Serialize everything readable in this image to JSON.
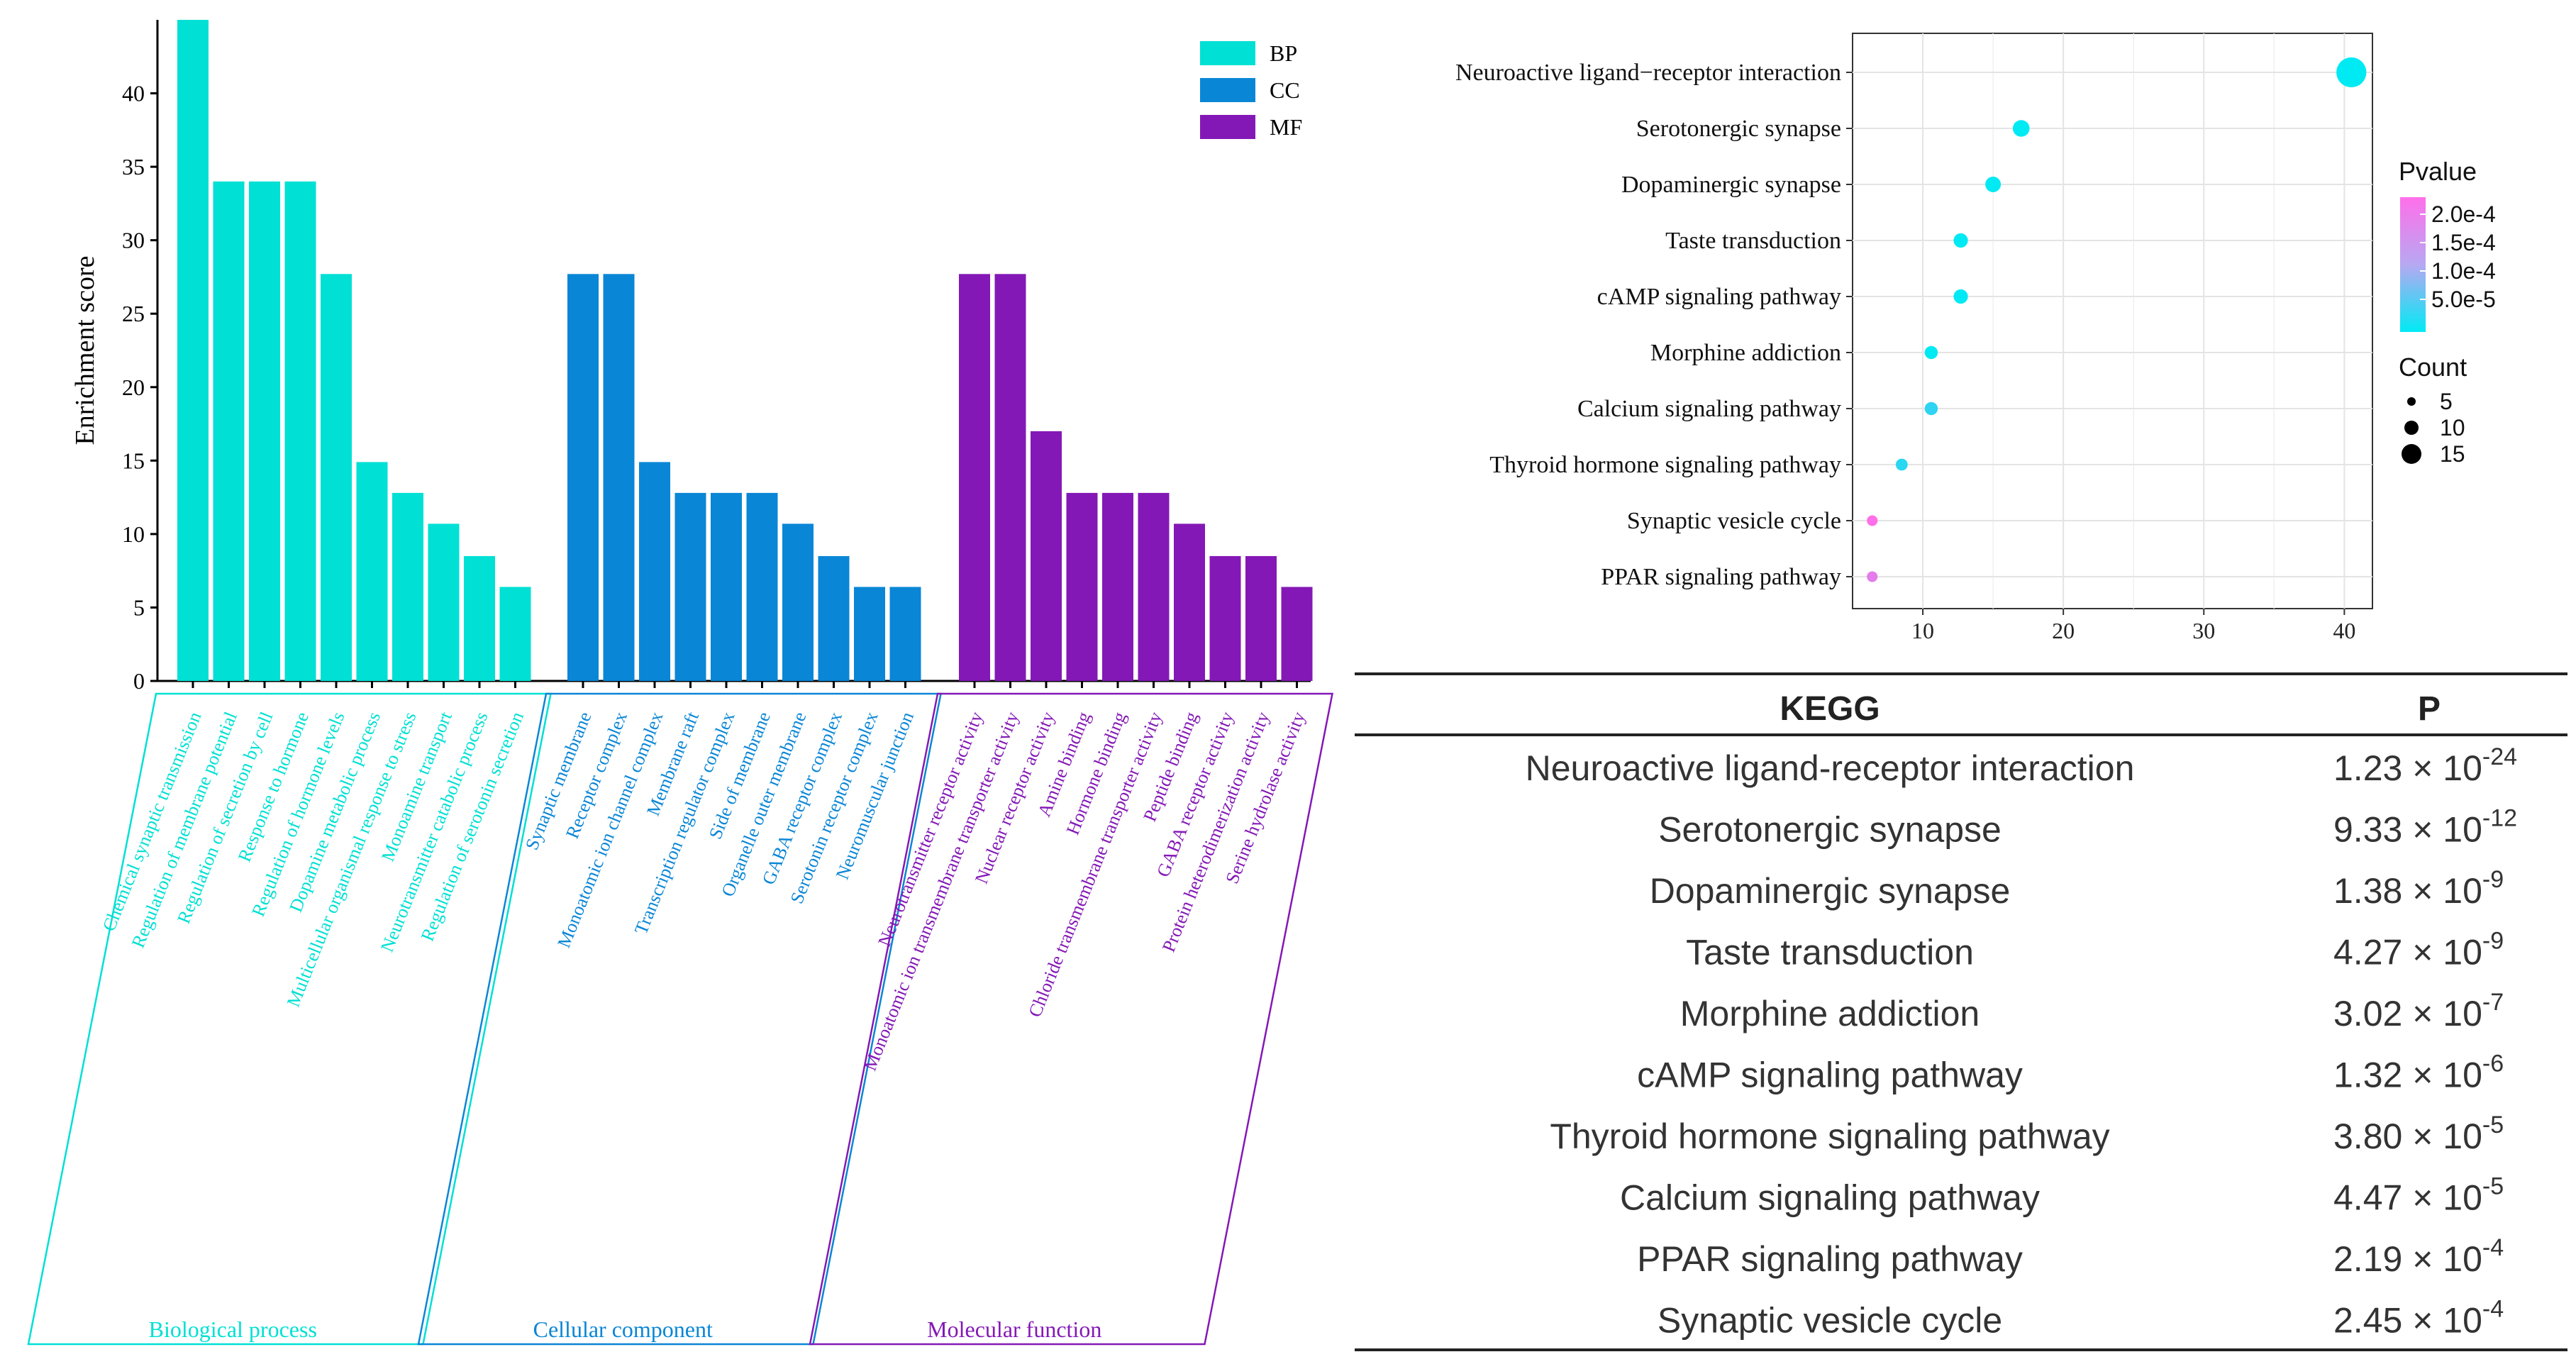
{
  "chart_data": [
    {
      "type": "bar",
      "ylabel": "Enrichment score",
      "ylim": [
        0,
        45
      ],
      "yticks": [
        0,
        5,
        10,
        15,
        20,
        25,
        30,
        35,
        40
      ],
      "legend": [
        {
          "key": "BP",
          "color": "#00E0D4"
        },
        {
          "key": "CC",
          "color": "#0A86D6"
        },
        {
          "key": "MF",
          "color": "#8418B6"
        }
      ],
      "groups": [
        {
          "key": "BP",
          "name": "Biological process",
          "color": "#00E0D4",
          "categories": [
            "Chemical synaptic transmission",
            "Regulation of membrane potential",
            "Regulation of secretion by cell",
            "Response to hormone",
            "Regulation of hormone levels",
            "Dopamine metabolic process",
            "Multicellular organismal response to stress",
            "Monoamine transport",
            "Neurotransmitter catabolic process",
            "Regulation of serotonin secretion"
          ],
          "values": [
            45,
            34,
            34,
            34,
            27.7,
            14.9,
            12.8,
            10.7,
            8.5,
            6.4
          ]
        },
        {
          "key": "CC",
          "name": "Cellular component",
          "color": "#0A86D6",
          "categories": [
            "Synaptic membrane",
            "Receptor complex",
            "Monoatomic ion channel complex",
            "Membrane raft",
            "Transcription regulator complex",
            "Side of membrane",
            "Organelle outer membrane",
            "GABA receptor complex",
            "Serotonin receptor complex",
            "Neuromuscular junction"
          ],
          "values": [
            27.7,
            27.7,
            14.9,
            12.8,
            12.8,
            12.8,
            10.7,
            8.5,
            6.4,
            6.4
          ]
        },
        {
          "key": "MF",
          "name": "Molecular function",
          "color": "#8418B6",
          "categories": [
            "Neurotransmitter receptor activity",
            "Monoatomic ion transmembrane transporter activity",
            "Nuclear receptor activity",
            "Amine binding",
            "Hormone binding",
            "Chloride transmembrane transporter activity",
            "Peptide binding",
            "GABA receptor activity",
            "Protein heterodimerization activity",
            "Serine hydrolase activity"
          ],
          "values": [
            27.7,
            27.7,
            17,
            12.8,
            12.8,
            12.8,
            10.7,
            8.5,
            8.5,
            6.4
          ]
        }
      ]
    },
    {
      "type": "scatter",
      "categories": [
        "Neuroactive ligand−receptor interaction",
        "Serotonergic synapse",
        "Dopaminergic synapse",
        "Taste transduction",
        "cAMP signaling pathway",
        "Morphine addiction",
        "Calcium signaling pathway",
        "Thyroid hormone signaling pathway",
        "Synaptic vesicle cycle",
        "PPAR signaling pathway"
      ],
      "x": [
        40.5,
        17,
        15,
        12.7,
        12.7,
        10.6,
        10.6,
        8.5,
        6.4,
        6.4
      ],
      "count": [
        19,
        8,
        7,
        6,
        6,
        5,
        5,
        4,
        3,
        3
      ],
      "pvalue": [
        1.23e-24,
        9.33e-12,
        1.38e-09,
        4.27e-09,
        1.32e-06,
        3.02e-07,
        4.47e-05,
        3.8e-05,
        0.000245,
        0.000219
      ],
      "xlim": [
        5,
        42
      ],
      "xticks": [
        "10",
        "20",
        "30",
        "40"
      ],
      "xtick_values": [
        10,
        20,
        30,
        40
      ],
      "legend_pvalue_title": "Pvalue",
      "legend_pvalue_labels": [
        "2.0e-4",
        "1.5e-4",
        "1.0e-4",
        "5.0e-5"
      ],
      "legend_count_title": "Count",
      "legend_count_labels": [
        "5",
        "10",
        "15"
      ],
      "color_high": "#FF6FEA",
      "color_low": "#00EAF4"
    },
    {
      "type": "table",
      "headers": [
        "KEGG",
        "P"
      ],
      "rows": [
        {
          "name": "Neuroactive ligand-receptor interaction",
          "mantissa": "1.23 × 10",
          "exp": "-24"
        },
        {
          "name": "Serotonergic synapse",
          "mantissa": "9.33 × 10",
          "exp": "-12"
        },
        {
          "name": "Dopaminergic synapse",
          "mantissa": "1.38 × 10",
          "exp": "-9"
        },
        {
          "name": "Taste transduction",
          "mantissa": "4.27 × 10",
          "exp": "-9"
        },
        {
          "name": "Morphine addiction",
          "mantissa": "3.02 × 10",
          "exp": "-7"
        },
        {
          "name": "cAMP signaling pathway",
          "mantissa": "1.32 × 10",
          "exp": "-6"
        },
        {
          "name": "Thyroid hormone signaling pathway",
          "mantissa": "3.80 × 10",
          "exp": "-5"
        },
        {
          "name": "Calcium signaling pathway",
          "mantissa": "4.47 × 10",
          "exp": "-5"
        },
        {
          "name": "PPAR signaling pathway",
          "mantissa": "2.19 × 10",
          "exp": "-4"
        },
        {
          "name": "Synaptic vesicle cycle",
          "mantissa": "2.45 × 10",
          "exp": "-4"
        }
      ]
    }
  ]
}
